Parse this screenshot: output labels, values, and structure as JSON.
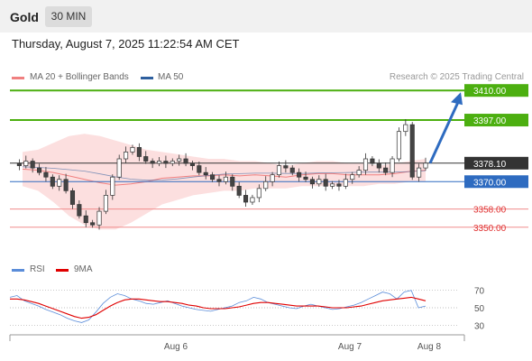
{
  "header": {
    "instrument": "Gold",
    "timeframe": "30 MIN"
  },
  "datetime": "Thursday, August 7, 2025 11:22:54 AM CET",
  "legend": {
    "ma20": "MA 20 + Bollinger Bands",
    "ma50": "MA 50",
    "rsi": "RSI",
    "rsi_ma": "9MA",
    "ma20_color": "#f08080",
    "ma50_color": "#2e5f9e",
    "rsi_color": "#5b8dd9",
    "rsi_ma_color": "#e00000"
  },
  "credit": "Research © 2025 Trading Central",
  "price_labels": {
    "resistance_2": "3410.00",
    "resistance_1": "3397.00",
    "current": "3378.10",
    "pivot": "3370.00",
    "support_1": "3358.00",
    "support_2": "3350.00"
  },
  "chart_data": [
    {
      "type": "candlestick",
      "title": "Gold 30 MIN",
      "ylim": [
        3342,
        3418
      ],
      "ytick_labels": [
        "3410.00",
        "3397.00",
        "3378.10",
        "3370.00",
        "3358.00",
        "3350.00"
      ],
      "x_tick_labels": [
        "Aug 6",
        "Aug 7",
        "Aug 8"
      ],
      "levels": [
        {
          "value": 3410.0,
          "kind": "resistance",
          "color": "#4caf10"
        },
        {
          "value": 3397.0,
          "kind": "resistance",
          "color": "#4caf10"
        },
        {
          "value": 3378.1,
          "kind": "current",
          "color": "#333333"
        },
        {
          "value": 3370.0,
          "kind": "pivot",
          "color": "#2e6bc0"
        },
        {
          "value": 3358.0,
          "kind": "support",
          "color": "#f08c8c"
        },
        {
          "value": 3350.0,
          "kind": "support",
          "color": "#f08c8c"
        }
      ],
      "forecast_arrow": {
        "from": 3378.1,
        "to": 3410.0,
        "color": "#2e6bc0"
      },
      "close_path": [
        3378,
        3377,
        3379,
        3376,
        3374,
        3372,
        3368,
        3371,
        3366,
        3360,
        3355,
        3352,
        3351,
        3357,
        3364,
        3372,
        3380,
        3383,
        3385,
        3381,
        3379,
        3378,
        3379,
        3378,
        3379,
        3380,
        3378,
        3377,
        3374,
        3373,
        3371,
        3370,
        3372,
        3368,
        3364,
        3361,
        3363,
        3367,
        3370,
        3373,
        3377,
        3376,
        3374,
        3372,
        3371,
        3369,
        3371,
        3368,
        3369,
        3368,
        3371,
        3373,
        3375,
        3380,
        3378,
        3376,
        3374,
        3380,
        3392,
        3395,
        3372,
        3376,
        3378.1
      ],
      "bollinger_upper": [
        3383,
        3384,
        3387,
        3390,
        3391,
        3390,
        3388,
        3386,
        3384,
        3383,
        3382,
        3381,
        3380,
        3380,
        3379,
        3379,
        3378,
        3377,
        3378,
        3379,
        3379,
        3378,
        3378,
        3377,
        3378,
        3379,
        3380
      ],
      "bollinger_lower": [
        3368,
        3366,
        3361,
        3355,
        3351,
        3349,
        3349,
        3352,
        3356,
        3360,
        3362,
        3364,
        3365,
        3366,
        3366,
        3367,
        3367,
        3367,
        3368,
        3368,
        3368,
        3368,
        3368,
        3369,
        3369,
        3370,
        3370
      ]
    },
    {
      "type": "line",
      "title": "RSI",
      "ylim": [
        20,
        80
      ],
      "yticks": [
        70,
        50,
        30
      ],
      "series": [
        {
          "name": "RSI",
          "values": [
            62,
            64,
            58,
            55,
            52,
            48,
            45,
            42,
            38,
            35,
            33,
            36,
            45,
            55,
            62,
            66,
            64,
            60,
            58,
            55,
            54,
            56,
            58,
            55,
            52,
            50,
            48,
            47,
            46,
            48,
            50,
            52,
            56,
            58,
            62,
            60,
            56,
            54,
            52,
            50,
            49,
            52,
            54,
            52,
            50,
            48,
            49,
            51,
            53,
            56,
            60,
            64,
            68,
            66,
            60,
            68,
            70,
            50,
            52
          ]
        },
        {
          "name": "9MA",
          "values": [
            60,
            60,
            59,
            57,
            55,
            52,
            49,
            46,
            43,
            40,
            38,
            39,
            42,
            47,
            52,
            56,
            59,
            60,
            60,
            59,
            58,
            57,
            57,
            56,
            55,
            53,
            52,
            50,
            49,
            49,
            49,
            50,
            51,
            53,
            55,
            56,
            56,
            55,
            54,
            53,
            52,
            52,
            52,
            52,
            51,
            50,
            50,
            50,
            51,
            52,
            54,
            56,
            58,
            59,
            60,
            61,
            62,
            60,
            58
          ]
        }
      ]
    }
  ]
}
